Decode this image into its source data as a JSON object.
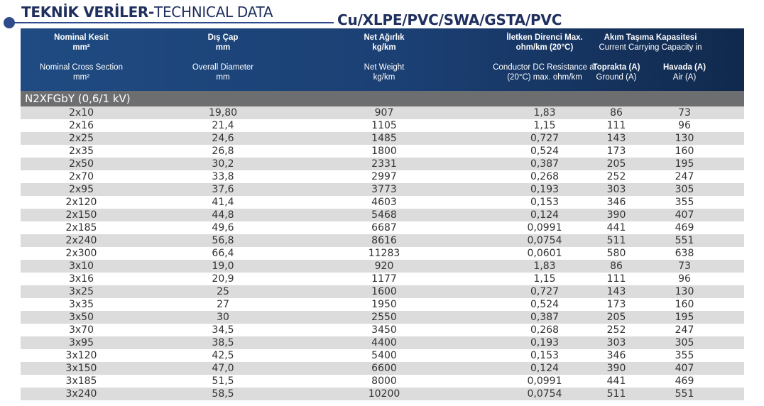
{
  "title": {
    "bold": "TEKNİK VERİLER-",
    "regular": "TECHNICAL DATA"
  },
  "subtitle": "Cu/XLPE/PVC/SWA/GSTA/PVC",
  "header": {
    "nominal_tr": "Nominal Kesit",
    "nominal_tr_unit": "mm²",
    "nominal_en": "Nominal Cross Section",
    "nominal_en_unit": "mm²",
    "diameter_tr": "Dış Çap",
    "diameter_tr_unit": "mm",
    "diameter_en": "Overall Diameter",
    "diameter_en_unit": "mm",
    "weight_tr": "Net Ağırlık",
    "weight_tr_unit": "kg/km",
    "weight_en": "Net Weight",
    "weight_en_unit": "kg/km",
    "resist_tr": "İletken Direnci Max.",
    "resist_tr_unit": "ohm/km (20°C)",
    "resist_en": "Conductor DC Resistance at",
    "resist_en_unit": "(20°C) max. ohm/km",
    "current_tr": "Akım Taşıma Kapasitesi",
    "current_en": "Current Carrying Capacity in",
    "ground_tr": "Toprakta (A)",
    "ground_en": "Ground (A)",
    "air_tr": "Havada (A)",
    "air_en": "Air (A)"
  },
  "section": "N2XFGbY (0,6/1 kV)",
  "rows": [
    [
      "2x10",
      "19,80",
      "907",
      "1,83",
      "86",
      "73"
    ],
    [
      "2x16",
      "21,4",
      "1105",
      "1,15",
      "111",
      "96"
    ],
    [
      "2x25",
      "24,6",
      "1485",
      "0,727",
      "143",
      "130"
    ],
    [
      "2x35",
      "26,8",
      "1800",
      "0,524",
      "173",
      "160"
    ],
    [
      "2x50",
      "30,2",
      "2331",
      "0,387",
      "205",
      "195"
    ],
    [
      "2x70",
      "33,8",
      "2997",
      "0,268",
      "252",
      "247"
    ],
    [
      "2x95",
      "37,6",
      "3773",
      "0,193",
      "303",
      "305"
    ],
    [
      "2x120",
      "41,4",
      "4603",
      "0,153",
      "346",
      "355"
    ],
    [
      "2x150",
      "44,8",
      "5468",
      "0,124",
      "390",
      "407"
    ],
    [
      "2x185",
      "49,6",
      "6687",
      "0,0991",
      "441",
      "469"
    ],
    [
      "2x240",
      "56,8",
      "8616",
      "0,0754",
      "511",
      "551"
    ],
    [
      "2x300",
      "66,4",
      "11283",
      "0,0601",
      "580",
      "638"
    ],
    [
      "3x10",
      "19,0",
      "920",
      "1,83",
      "86",
      "73"
    ],
    [
      "3x16",
      "20,9",
      "1177",
      "1,15",
      "111",
      "96"
    ],
    [
      "3x25",
      "25",
      "1600",
      "0,727",
      "143",
      "130"
    ],
    [
      "3x35",
      "27",
      "1950",
      "0,524",
      "173",
      "160"
    ],
    [
      "3x50",
      "30",
      "2550",
      "0,387",
      "205",
      "195"
    ],
    [
      "3x70",
      "34,5",
      "3450",
      "0,268",
      "252",
      "247"
    ],
    [
      "3x95",
      "38,5",
      "4400",
      "0,193",
      "303",
      "305"
    ],
    [
      "3x120",
      "42,5",
      "5400",
      "0,153",
      "346",
      "355"
    ],
    [
      "3x150",
      "47,0",
      "6600",
      "0,124",
      "390",
      "407"
    ],
    [
      "3x185",
      "51,5",
      "8000",
      "0,0991",
      "441",
      "469"
    ],
    [
      "3x240",
      "58,5",
      "10200",
      "0,0754",
      "511",
      "551"
    ]
  ]
}
